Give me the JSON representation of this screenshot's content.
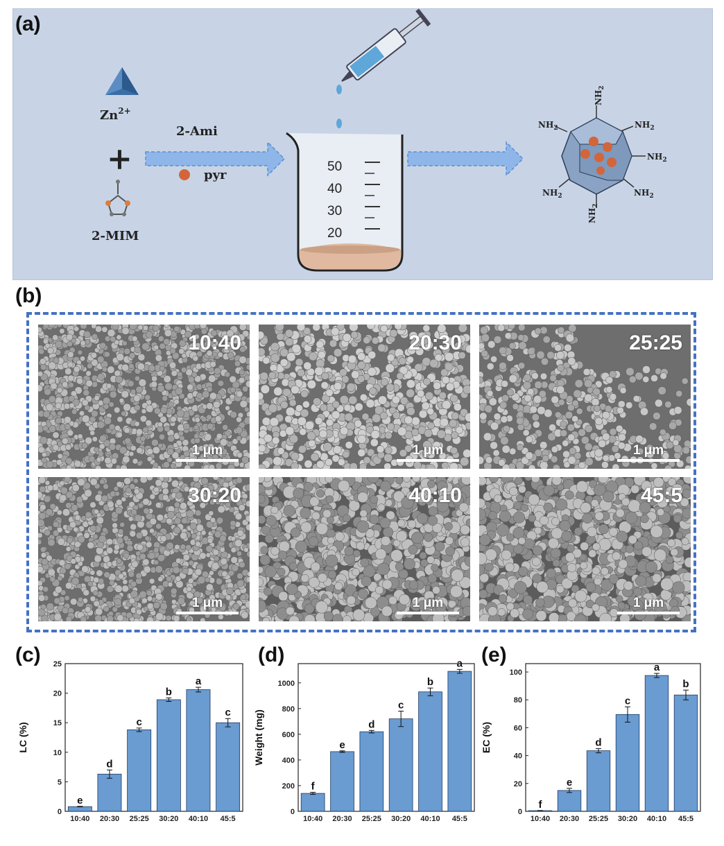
{
  "panel_labels": {
    "a": "(a)",
    "b": "(b)",
    "c": "(c)",
    "d": "(d)",
    "e": "(e)"
  },
  "scheme": {
    "zn_label": "Zn",
    "zn_sup": "2+",
    "plus": "+",
    "mim_label": "2-MIM",
    "arrow_label": "2-Ami",
    "pyr_label": "pyr",
    "beaker_ticks": [
      "50",
      "40",
      "30",
      "20"
    ],
    "nh2": [
      "NH",
      "NH",
      "NH",
      "NH",
      "NH",
      "NH",
      "NH",
      "NH"
    ],
    "nh2_sub": "2",
    "colors": {
      "background": "#c8d4e6",
      "arrow": "#8fb6e8",
      "cube": "#8aa3c4",
      "particle": "#d2663a",
      "liquid": "#e0b9a0"
    }
  },
  "sem": {
    "scale_text": "1 μm",
    "images": [
      {
        "ratio": "10:40",
        "texture": "small-dense"
      },
      {
        "ratio": "20:30",
        "texture": "uniform"
      },
      {
        "ratio": "25:25",
        "texture": "patchy"
      },
      {
        "ratio": "30:20",
        "texture": "small-dense"
      },
      {
        "ratio": "40:10",
        "texture": "aggregated"
      },
      {
        "ratio": "45:5",
        "texture": "aggregated"
      }
    ]
  },
  "chart_data": [
    {
      "type": "bar",
      "categories": [
        "10:40",
        "20:30",
        "25:25",
        "30:20",
        "40:10",
        "45:5"
      ],
      "values": [
        0.8,
        6.3,
        13.8,
        18.9,
        20.6,
        15.0
      ],
      "errors": [
        0.05,
        0.7,
        0.3,
        0.3,
        0.4,
        0.7
      ],
      "letters": [
        "e",
        "d",
        "c",
        "b",
        "a",
        "c"
      ],
      "ylabel": "LC (%)",
      "ylim": [
        0,
        25
      ],
      "yticks": [
        0,
        5,
        10,
        15,
        20,
        25
      ],
      "bar_color": "#6a9bd1"
    },
    {
      "type": "bar",
      "categories": [
        "10:40",
        "20:30",
        "25:25",
        "30:20",
        "40:10",
        "45:5"
      ],
      "values": [
        140,
        465,
        620,
        720,
        930,
        1090
      ],
      "errors": [
        8,
        6,
        10,
        60,
        30,
        15
      ],
      "letters": [
        "f",
        "e",
        "d",
        "c",
        "b",
        "a"
      ],
      "ylabel": "Weight (mg)",
      "ylim": [
        0,
        1150
      ],
      "yticks": [
        0,
        200,
        400,
        600,
        800,
        1000
      ],
      "bar_color": "#6a9bd1"
    },
    {
      "type": "bar",
      "categories": [
        "10:40",
        "20:30",
        "25:25",
        "30:20",
        "40:10",
        "45:5"
      ],
      "values": [
        0.5,
        15.0,
        43.5,
        69.5,
        97.5,
        83.5
      ],
      "errors": [
        0.1,
        1.5,
        1.5,
        5.5,
        1.5,
        3.5
      ],
      "letters": [
        "f",
        "e",
        "d",
        "c",
        "a",
        "b"
      ],
      "ylabel": "EC (%)",
      "ylim": [
        0,
        106
      ],
      "yticks": [
        0,
        20,
        40,
        60,
        80,
        100
      ],
      "bar_color": "#6a9bd1"
    }
  ]
}
